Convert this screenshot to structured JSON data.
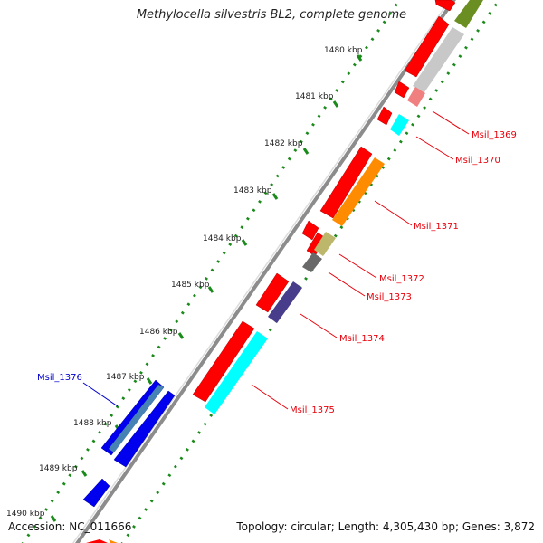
{
  "title": "Methylocella silvestris BL2, complete genome",
  "accession": "Accession: NC_011666",
  "topology": "Topology: circular; Length: 4,305,430 bp; Genes: 3,872",
  "kbp_labels": [
    "1480 kbp",
    "1481 kbp",
    "1482 kbp",
    "1483 kbp",
    "1484 kbp",
    "1485 kbp",
    "1486 kbp",
    "1487 kbp",
    "1488 kbp",
    "1489 kbp",
    "1490 kbp"
  ],
  "gene_labels": [
    {
      "name": "Msil_1369",
      "color": "#e8000b"
    },
    {
      "name": "Msil_1370",
      "color": "#e8000b"
    },
    {
      "name": "Msil_1371",
      "color": "#e8000b"
    },
    {
      "name": "Msil_1372",
      "color": "#e8000b"
    },
    {
      "name": "Msil_1373",
      "color": "#e8000b"
    },
    {
      "name": "Msil_1374",
      "color": "#e8000b"
    },
    {
      "name": "Msil_1375",
      "color": "#e8000b"
    },
    {
      "name": "Msil_1376",
      "color": "#0000cc"
    }
  ],
  "colors": {
    "forward_cds": "#ff0000",
    "reverse_cds": "#0000ee",
    "backbone": "#8c8c8c",
    "tick_green": "#1a8a1a",
    "feature_olive": "#6b8e23",
    "feature_silver": "#c8c8c8",
    "feature_pink": "#f08080",
    "feature_cyan": "#00ffff",
    "feature_orange": "#ff8c00",
    "feature_khaki": "#bdb76b",
    "feature_gray": "#696969",
    "feature_slate": "#483d8b",
    "feature_steel": "#4682b4"
  }
}
